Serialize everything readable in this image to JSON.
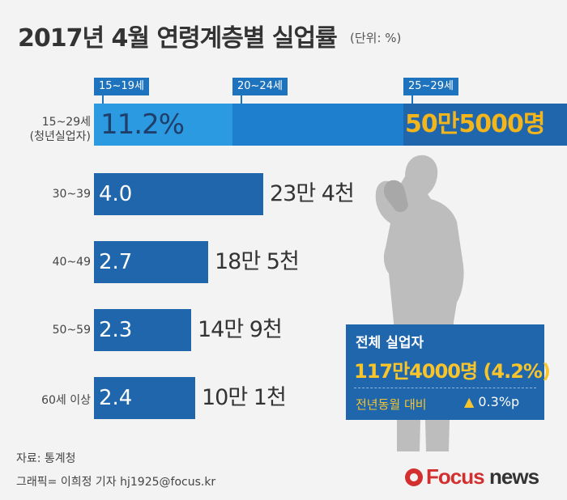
{
  "title": "2017년 4월 연령계층별 실업률",
  "unit": "(단위: %)",
  "youth_tags": [
    "15~19세",
    "20~24세",
    "25~29세"
  ],
  "youth_row": {
    "label_line1": "15~29세",
    "label_line2": "(청년실업자)",
    "rate": "11.2%",
    "count": "50만5000명"
  },
  "rows": [
    {
      "label": "30~39",
      "rate": "4.0",
      "count": "23만 4천"
    },
    {
      "label": "40~49",
      "rate": "2.7",
      "count": "18만 5천"
    },
    {
      "label": "50~59",
      "rate": "2.3",
      "count": "14만 9천"
    },
    {
      "label": "60세 이상",
      "rate": "2.4",
      "count": "10만 1천"
    }
  ],
  "total_box": {
    "title": "전체 실업자",
    "value": "117만4000명 (4.2%)",
    "compare_label": "전년동월 대비",
    "change": "0.3%p"
  },
  "source": "자료: 통계청",
  "credit": "그래픽= 이희정 기자 hj1925@focus.kr",
  "logo": {
    "part1": "Focus",
    "part2": "news"
  },
  "colors": {
    "bar": "#1f66ad",
    "youth_light": "#2b9ae0",
    "youth_mid": "#1d7fce",
    "youth_dark": "#1f66ad",
    "highlight": "#f2b51b",
    "background": "#f3f3f3"
  },
  "chart_data": {
    "type": "bar",
    "orientation": "horizontal",
    "title": "2017년 4월 연령계층별 실업률",
    "unit": "%",
    "categories": [
      "15~29세",
      "30~39",
      "40~49",
      "50~59",
      "60세 이상"
    ],
    "values": [
      11.2,
      4.0,
      2.7,
      2.3,
      2.4
    ],
    "counts": [
      "50만5000명",
      "23만 4천",
      "18만 5천",
      "14만 9천",
      "10만 1천"
    ],
    "youth_subgroups": [
      "15~19세",
      "20~24세",
      "25~29세"
    ],
    "total": {
      "value": "117만4000명",
      "rate": 4.2,
      "yoy_change": "▲0.3%p"
    }
  }
}
